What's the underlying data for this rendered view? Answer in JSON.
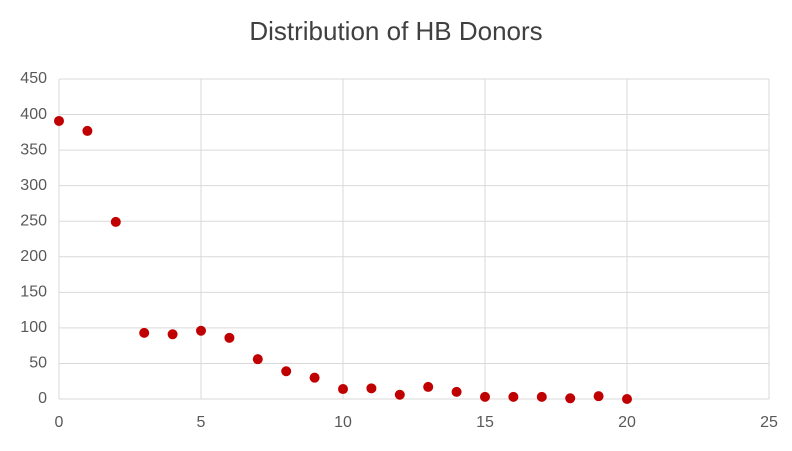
{
  "chart_data": {
    "type": "scatter",
    "title": "Distribution of HB Donors",
    "series": [
      {
        "color": "#c00000",
        "x": [
          0,
          1,
          2,
          3,
          4,
          5,
          6,
          7,
          8,
          9,
          10,
          11,
          12,
          13,
          14,
          15,
          16,
          17,
          18,
          19,
          20
        ],
        "values": [
          391,
          377,
          249,
          93,
          91,
          96,
          86,
          56,
          39,
          30,
          14,
          15,
          6,
          17,
          10,
          3,
          3,
          3,
          1,
          4,
          0
        ]
      }
    ],
    "xlim": [
      0,
      25
    ],
    "xticks": [
      0,
      5,
      10,
      15,
      20,
      25
    ],
    "ylim": [
      0,
      450
    ],
    "yticks": [
      0,
      50,
      100,
      150,
      200,
      250,
      300,
      350,
      400,
      450
    ],
    "grid": true
  }
}
